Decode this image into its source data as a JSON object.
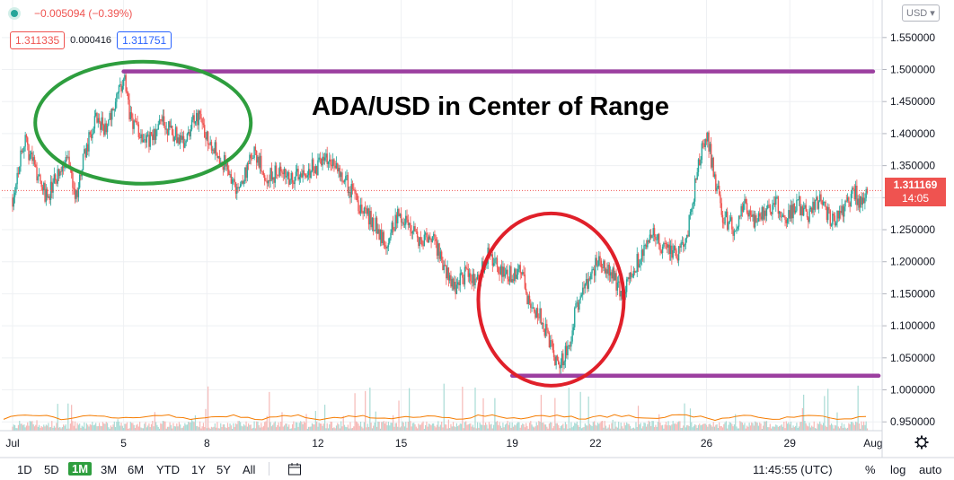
{
  "header": {
    "change": "−0.005094 (−0.39%)",
    "bid": "1.311335",
    "spread": "0.000416",
    "ask": "1.311751"
  },
  "currency_select": "USD ▾",
  "annotation": "ADA/USD in Center of Range",
  "last_price": "1.311169",
  "countdown": "14:05",
  "bottom": {
    "ranges": [
      "1D",
      "5D",
      "1M",
      "3M",
      "6M",
      "YTD",
      "1Y",
      "5Y",
      "All"
    ],
    "active": "1M",
    "time": "11:45:55 (UTC)",
    "percent": "%",
    "log": "log",
    "auto": "auto"
  },
  "colors": {
    "up": "#26a69a",
    "down": "#ef5350",
    "resistance": "#9c3fa0",
    "circle_green": "#2e9e3e",
    "circle_red": "#e0202a",
    "volume_ma": "#f57c00"
  },
  "chart_data": {
    "type": "candlestick",
    "title": "ADA/USD in Center of Range",
    "y_ticks": [
      "1.550000",
      "1.500000",
      "1.450000",
      "1.400000",
      "1.350000",
      "1.300000",
      "1.250000",
      "1.200000",
      "1.150000",
      "1.100000",
      "1.050000",
      "1.000000",
      "0.950000"
    ],
    "ylim": [
      0.93,
      1.57
    ],
    "x_ticks": [
      "Jul",
      "5",
      "8",
      "12",
      "15",
      "19",
      "22",
      "26",
      "29",
      "Aug"
    ],
    "x_tick_days": [
      1,
      5,
      8,
      12,
      15,
      19,
      22,
      26,
      29,
      32
    ],
    "xlim": [
      1,
      32.4
    ],
    "last_price": 1.311169,
    "levels": [
      {
        "from_day": 5,
        "to_day": 32,
        "price": 1.497
      },
      {
        "from_day": 19,
        "to_day": 32.2,
        "price": 1.022
      }
    ],
    "price_path": [
      [
        1.0,
        1.3
      ],
      [
        1.4,
        1.39
      ],
      [
        1.8,
        1.35
      ],
      [
        2.2,
        1.3
      ],
      [
        2.6,
        1.33
      ],
      [
        3.0,
        1.36
      ],
      [
        3.3,
        1.3
      ],
      [
        3.6,
        1.37
      ],
      [
        4.0,
        1.42
      ],
      [
        4.3,
        1.41
      ],
      [
        4.7,
        1.44
      ],
      [
        5.0,
        1.49
      ],
      [
        5.2,
        1.43
      ],
      [
        5.6,
        1.4
      ],
      [
        6.0,
        1.39
      ],
      [
        6.4,
        1.42
      ],
      [
        6.8,
        1.4
      ],
      [
        7.2,
        1.39
      ],
      [
        7.6,
        1.43
      ],
      [
        8.0,
        1.4
      ],
      [
        8.4,
        1.37
      ],
      [
        8.8,
        1.34
      ],
      [
        9.1,
        1.31
      ],
      [
        9.3,
        1.33
      ],
      [
        9.7,
        1.37
      ],
      [
        10.2,
        1.33
      ],
      [
        10.6,
        1.34
      ],
      [
        11.0,
        1.33
      ],
      [
        11.5,
        1.34
      ],
      [
        12.0,
        1.35
      ],
      [
        12.5,
        1.36
      ],
      [
        12.8,
        1.34
      ],
      [
        13.2,
        1.31
      ],
      [
        13.6,
        1.28
      ],
      [
        14.0,
        1.26
      ],
      [
        14.5,
        1.23
      ],
      [
        14.9,
        1.28
      ],
      [
        15.3,
        1.25
      ],
      [
        15.7,
        1.23
      ],
      [
        16.1,
        1.24
      ],
      [
        16.5,
        1.2
      ],
      [
        16.9,
        1.16
      ],
      [
        17.3,
        1.18
      ],
      [
        17.7,
        1.17
      ],
      [
        18.1,
        1.21
      ],
      [
        18.5,
        1.19
      ],
      [
        18.9,
        1.18
      ],
      [
        19.3,
        1.19
      ],
      [
        19.6,
        1.13
      ],
      [
        20.0,
        1.12
      ],
      [
        20.3,
        1.08
      ],
      [
        20.6,
        1.04
      ],
      [
        21.0,
        1.06
      ],
      [
        21.3,
        1.13
      ],
      [
        21.7,
        1.17
      ],
      [
        22.1,
        1.2
      ],
      [
        22.5,
        1.19
      ],
      [
        22.9,
        1.15
      ],
      [
        23.3,
        1.18
      ],
      [
        23.7,
        1.22
      ],
      [
        24.1,
        1.24
      ],
      [
        24.5,
        1.22
      ],
      [
        24.9,
        1.21
      ],
      [
        25.3,
        1.24
      ],
      [
        25.7,
        1.35
      ],
      [
        26.0,
        1.4
      ],
      [
        26.3,
        1.33
      ],
      [
        26.6,
        1.27
      ],
      [
        27.0,
        1.25
      ],
      [
        27.3,
        1.29
      ],
      [
        27.7,
        1.26
      ],
      [
        28.1,
        1.28
      ],
      [
        28.5,
        1.29
      ],
      [
        28.9,
        1.27
      ],
      [
        29.3,
        1.29
      ],
      [
        29.7,
        1.27
      ],
      [
        30.1,
        1.3
      ],
      [
        30.5,
        1.26
      ],
      [
        30.9,
        1.28
      ],
      [
        31.3,
        1.31
      ],
      [
        31.6,
        1.29
      ],
      [
        31.8,
        1.31
      ]
    ]
  }
}
